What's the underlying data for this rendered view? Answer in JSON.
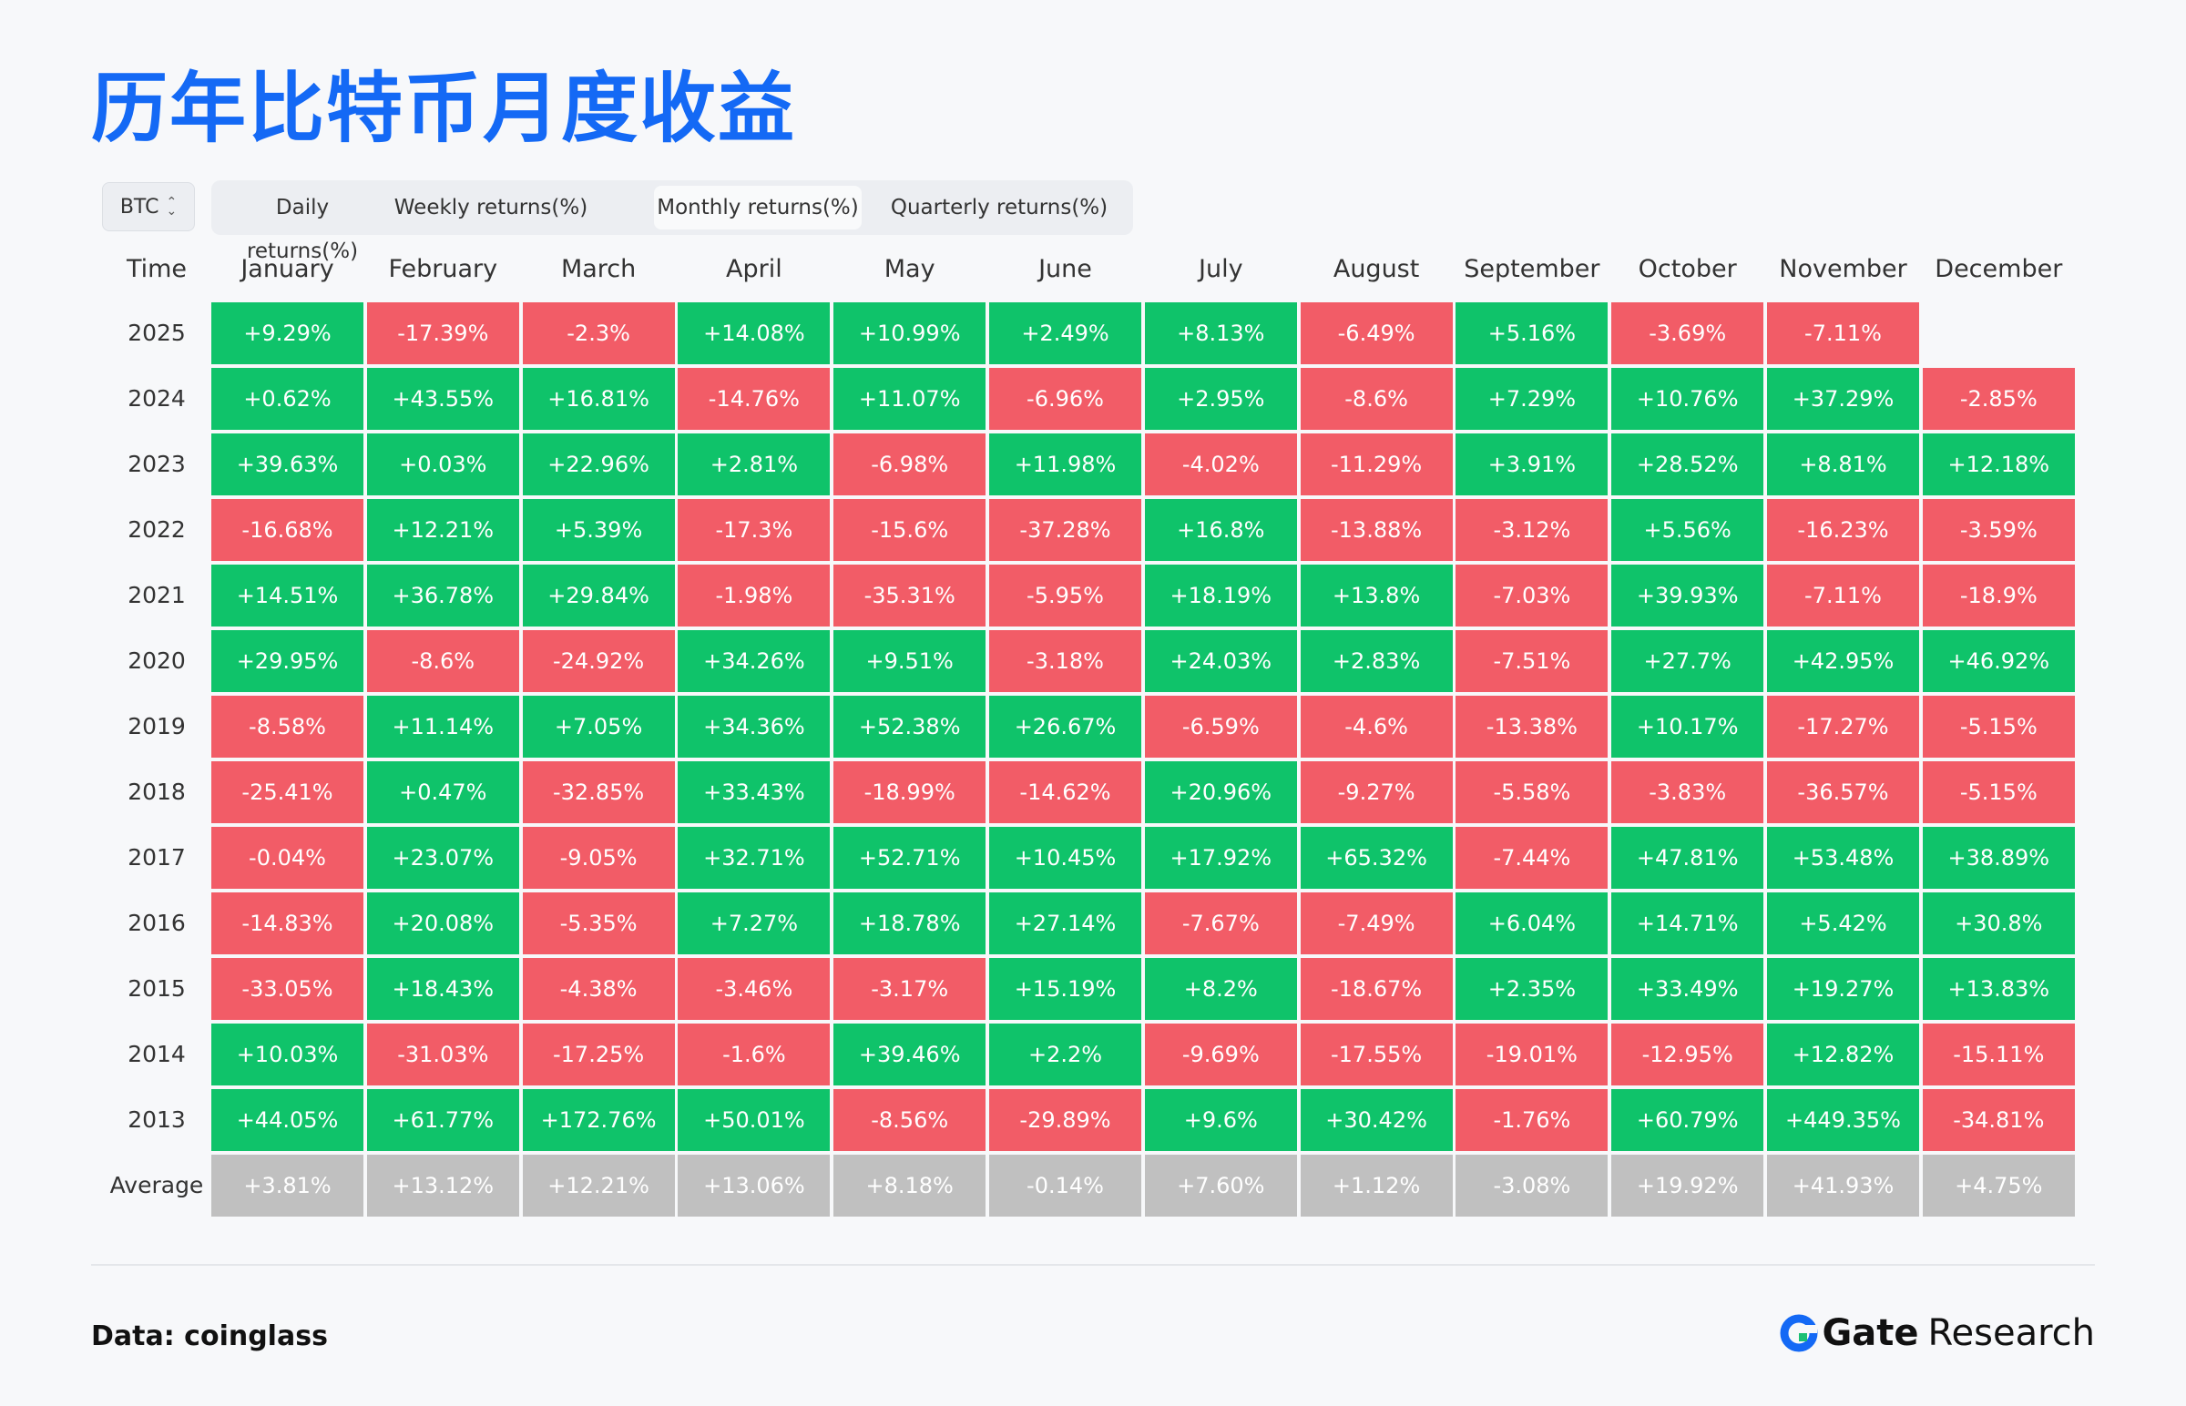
{
  "title": "历年比特币月度收益",
  "asset_select": "BTC",
  "tabs": [
    "Daily returns(%)",
    "Weekly returns(%)",
    "Monthly returns(%)",
    "Quarterly returns(%)"
  ],
  "active_tab": 2,
  "footer": {
    "source": "Data: coinglass",
    "brand_gate": "Gate",
    "brand_research": "Research"
  },
  "colors": {
    "positive": "#0fc36a",
    "negative": "#f25c67",
    "average": "#c0c0c0",
    "title": "#1469f5"
  },
  "chart_data": {
    "type": "heatmap",
    "corner_label": "Time",
    "columns": [
      "January",
      "February",
      "March",
      "April",
      "May",
      "June",
      "July",
      "August",
      "September",
      "October",
      "November",
      "December"
    ],
    "rows": [
      {
        "label": "2025",
        "values": [
          "+9.29%",
          "-17.39%",
          "-2.3%",
          "+14.08%",
          "+10.99%",
          "+2.49%",
          "+8.13%",
          "-6.49%",
          "+5.16%",
          "-3.69%",
          "-7.11%",
          ""
        ]
      },
      {
        "label": "2024",
        "values": [
          "+0.62%",
          "+43.55%",
          "+16.81%",
          "-14.76%",
          "+11.07%",
          "-6.96%",
          "+2.95%",
          "-8.6%",
          "+7.29%",
          "+10.76%",
          "+37.29%",
          "-2.85%"
        ]
      },
      {
        "label": "2023",
        "values": [
          "+39.63%",
          "+0.03%",
          "+22.96%",
          "+2.81%",
          "-6.98%",
          "+11.98%",
          "-4.02%",
          "-11.29%",
          "+3.91%",
          "+28.52%",
          "+8.81%",
          "+12.18%"
        ]
      },
      {
        "label": "2022",
        "values": [
          "-16.68%",
          "+12.21%",
          "+5.39%",
          "-17.3%",
          "-15.6%",
          "-37.28%",
          "+16.8%",
          "-13.88%",
          "-3.12%",
          "+5.56%",
          "-16.23%",
          "-3.59%"
        ]
      },
      {
        "label": "2021",
        "values": [
          "+14.51%",
          "+36.78%",
          "+29.84%",
          "-1.98%",
          "-35.31%",
          "-5.95%",
          "+18.19%",
          "+13.8%",
          "-7.03%",
          "+39.93%",
          "-7.11%",
          "-18.9%"
        ]
      },
      {
        "label": "2020",
        "values": [
          "+29.95%",
          "-8.6%",
          "-24.92%",
          "+34.26%",
          "+9.51%",
          "-3.18%",
          "+24.03%",
          "+2.83%",
          "-7.51%",
          "+27.7%",
          "+42.95%",
          "+46.92%"
        ]
      },
      {
        "label": "2019",
        "values": [
          "-8.58%",
          "+11.14%",
          "+7.05%",
          "+34.36%",
          "+52.38%",
          "+26.67%",
          "-6.59%",
          "-4.6%",
          "-13.38%",
          "+10.17%",
          "-17.27%",
          "-5.15%"
        ]
      },
      {
        "label": "2018",
        "values": [
          "-25.41%",
          "+0.47%",
          "-32.85%",
          "+33.43%",
          "-18.99%",
          "-14.62%",
          "+20.96%",
          "-9.27%",
          "-5.58%",
          "-3.83%",
          "-36.57%",
          "-5.15%"
        ]
      },
      {
        "label": "2017",
        "values": [
          "-0.04%",
          "+23.07%",
          "-9.05%",
          "+32.71%",
          "+52.71%",
          "+10.45%",
          "+17.92%",
          "+65.32%",
          "-7.44%",
          "+47.81%",
          "+53.48%",
          "+38.89%"
        ]
      },
      {
        "label": "2016",
        "values": [
          "-14.83%",
          "+20.08%",
          "-5.35%",
          "+7.27%",
          "+18.78%",
          "+27.14%",
          "-7.67%",
          "-7.49%",
          "+6.04%",
          "+14.71%",
          "+5.42%",
          "+30.8%"
        ]
      },
      {
        "label": "2015",
        "values": [
          "-33.05%",
          "+18.43%",
          "-4.38%",
          "-3.46%",
          "-3.17%",
          "+15.19%",
          "+8.2%",
          "-18.67%",
          "+2.35%",
          "+33.49%",
          "+19.27%",
          "+13.83%"
        ]
      },
      {
        "label": "2014",
        "values": [
          "+10.03%",
          "-31.03%",
          "-17.25%",
          "-1.6%",
          "+39.46%",
          "+2.2%",
          "-9.69%",
          "-17.55%",
          "-19.01%",
          "-12.95%",
          "+12.82%",
          "-15.11%"
        ]
      },
      {
        "label": "2013",
        "values": [
          "+44.05%",
          "+61.77%",
          "+172.76%",
          "+50.01%",
          "-8.56%",
          "-29.89%",
          "+9.6%",
          "+30.42%",
          "-1.76%",
          "+60.79%",
          "+449.35%",
          "-34.81%"
        ]
      }
    ],
    "average": {
      "label": "Average",
      "values": [
        "+3.81%",
        "+13.12%",
        "+12.21%",
        "+13.06%",
        "+8.18%",
        "-0.14%",
        "+7.60%",
        "+1.12%",
        "-3.08%",
        "+19.92%",
        "+41.93%",
        "+4.75%"
      ]
    }
  }
}
